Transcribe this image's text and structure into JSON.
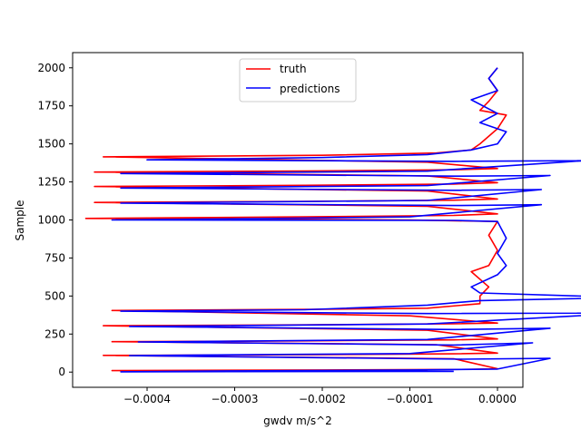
{
  "chart_data": {
    "type": "line",
    "title": "",
    "xlabel": "gwdv m/s^2",
    "ylabel": "Sample",
    "xlim": [
      -0.000485,
      2.9e-05
    ],
    "ylim": [
      -100,
      2100
    ],
    "xticks": [
      -0.0004,
      -0.0003,
      -0.0002,
      -0.0001,
      0.0
    ],
    "xtick_labels": [
      "−0.0004",
      "−0.0003",
      "−0.0002",
      "−0.0001",
      "0.0000"
    ],
    "yticks": [
      0,
      250,
      500,
      750,
      1000,
      1250,
      1500,
      1750,
      2000
    ],
    "ytick_labels": [
      "0",
      "250",
      "500",
      "750",
      "1000",
      "1250",
      "1500",
      "1750",
      "2000"
    ],
    "grid": false,
    "legend_position": "top-center",
    "series": [
      {
        "name": "truth",
        "color": "#ff0000",
        "points": [
          [
            -8e-05,
            8
          ],
          [
            -0.00044,
            10
          ],
          [
            -0.0002,
            14
          ],
          [
            -3e-05,
            18
          ],
          [
            0.0,
            22
          ],
          [
            -5e-05,
            88
          ],
          [
            -0.00045,
            110
          ],
          [
            -0.00021,
            114
          ],
          [
            -5e-05,
            120
          ],
          [
            0.0,
            125
          ],
          [
            -7e-05,
            180
          ],
          [
            -0.00044,
            200
          ],
          [
            -0.00022,
            205
          ],
          [
            -5e-05,
            212
          ],
          [
            0.0,
            218
          ],
          [
            -8e-05,
            275
          ],
          [
            -0.00045,
            305
          ],
          [
            -0.00023,
            310
          ],
          [
            -5e-05,
            318
          ],
          [
            0.0,
            322
          ],
          [
            -0.0001,
            370
          ],
          [
            -0.00044,
            405
          ],
          [
            -0.00021,
            412
          ],
          [
            -8e-05,
            420
          ],
          [
            -2e-05,
            450
          ],
          [
            -2e-05,
            500
          ],
          [
            -1e-05,
            560
          ],
          [
            -3e-05,
            660
          ],
          [
            -1e-05,
            700
          ],
          [
            0.0,
            800
          ],
          [
            -1e-05,
            900
          ],
          [
            0.0,
            990
          ],
          [
            -0.0001,
            1000
          ],
          [
            -0.00047,
            1010
          ],
          [
            -0.00022,
            1020
          ],
          [
            -5e-05,
            1030
          ],
          [
            0.0,
            1040
          ],
          [
            -8e-05,
            1090
          ],
          [
            -0.00046,
            1115
          ],
          [
            -0.00022,
            1122
          ],
          [
            -5e-05,
            1130
          ],
          [
            0.0,
            1138
          ],
          [
            -8e-05,
            1190
          ],
          [
            -0.00046,
            1220
          ],
          [
            -0.00022,
            1228
          ],
          [
            -5e-05,
            1236
          ],
          [
            0.0,
            1245
          ],
          [
            -8e-05,
            1290
          ],
          [
            -0.00046,
            1315
          ],
          [
            -0.00022,
            1322
          ],
          [
            -5e-05,
            1330
          ],
          [
            0.0,
            1338
          ],
          [
            -8e-05,
            1380
          ],
          [
            -0.00045,
            1415
          ],
          [
            -0.0002,
            1425
          ],
          [
            -7e-05,
            1440
          ],
          [
            -3e-05,
            1460
          ],
          [
            -2e-05,
            1500
          ],
          [
            0.0,
            1600
          ],
          [
            1e-05,
            1690
          ],
          [
            -2e-05,
            1720
          ],
          [
            -1e-05,
            1780
          ],
          [
            0.0,
            1850
          ],
          [
            -1e-05,
            1930
          ],
          [
            0.0,
            2000
          ]
        ]
      },
      {
        "name": "predictions",
        "color": "#0000ff",
        "points": [
          [
            -5e-05,
            5
          ],
          [
            -0.00043,
            2
          ],
          [
            -0.0003,
            8
          ],
          [
            -0.0001,
            14
          ],
          [
            0.0,
            20
          ],
          [
            6e-05,
            90
          ],
          [
            -4e-05,
            85
          ],
          [
            -0.00042,
            108
          ],
          [
            -0.00025,
            116
          ],
          [
            -0.0001,
            122
          ],
          [
            4e-05,
            192
          ],
          [
            -5e-05,
            178
          ],
          [
            -0.00041,
            198
          ],
          [
            -0.00025,
            206
          ],
          [
            -8e-05,
            214
          ],
          [
            6e-05,
            288
          ],
          [
            -5e-05,
            280
          ],
          [
            -0.00042,
            300
          ],
          [
            -0.00025,
            308
          ],
          [
            -8e-05,
            316
          ],
          [
            0.00015,
            388
          ],
          [
            -8e-05,
            385
          ],
          [
            -0.00043,
            400
          ],
          [
            -0.00022,
            410
          ],
          [
            -8e-05,
            440
          ],
          [
            -2e-05,
            470
          ],
          [
            0.00015,
            490
          ],
          [
            -2e-05,
            520
          ],
          [
            -3e-05,
            560
          ],
          [
            0.0,
            640
          ],
          [
            1e-05,
            700
          ],
          [
            0.0,
            780
          ],
          [
            1e-05,
            880
          ],
          [
            0.0,
            990
          ],
          [
            -5e-05,
            997
          ],
          [
            -0.00044,
            1000
          ],
          [
            -0.00025,
            1010
          ],
          [
            -0.0001,
            1020
          ],
          [
            5e-05,
            1100
          ],
          [
            -5e-05,
            1095
          ],
          [
            -0.00043,
            1110
          ],
          [
            -0.00025,
            1120
          ],
          [
            -8e-05,
            1128
          ],
          [
            5e-05,
            1200
          ],
          [
            -5e-05,
            1195
          ],
          [
            -0.00043,
            1210
          ],
          [
            -0.00025,
            1218
          ],
          [
            -8e-05,
            1226
          ],
          [
            6e-05,
            1292
          ],
          [
            -5e-05,
            1288
          ],
          [
            -0.00043,
            1305
          ],
          [
            -0.00025,
            1313
          ],
          [
            -8e-05,
            1321
          ],
          [
            0.0001,
            1390
          ],
          [
            -5e-05,
            1385
          ],
          [
            -0.0004,
            1395
          ],
          [
            -0.0002,
            1410
          ],
          [
            -8e-05,
            1430
          ],
          [
            -3e-05,
            1460
          ],
          [
            0.0,
            1500
          ],
          [
            1e-05,
            1580
          ],
          [
            -2e-05,
            1640
          ],
          [
            0.0,
            1700
          ],
          [
            -3e-05,
            1790
          ],
          [
            0.0,
            1850
          ],
          [
            -1e-05,
            1930
          ],
          [
            0.0,
            2000
          ]
        ]
      }
    ]
  }
}
